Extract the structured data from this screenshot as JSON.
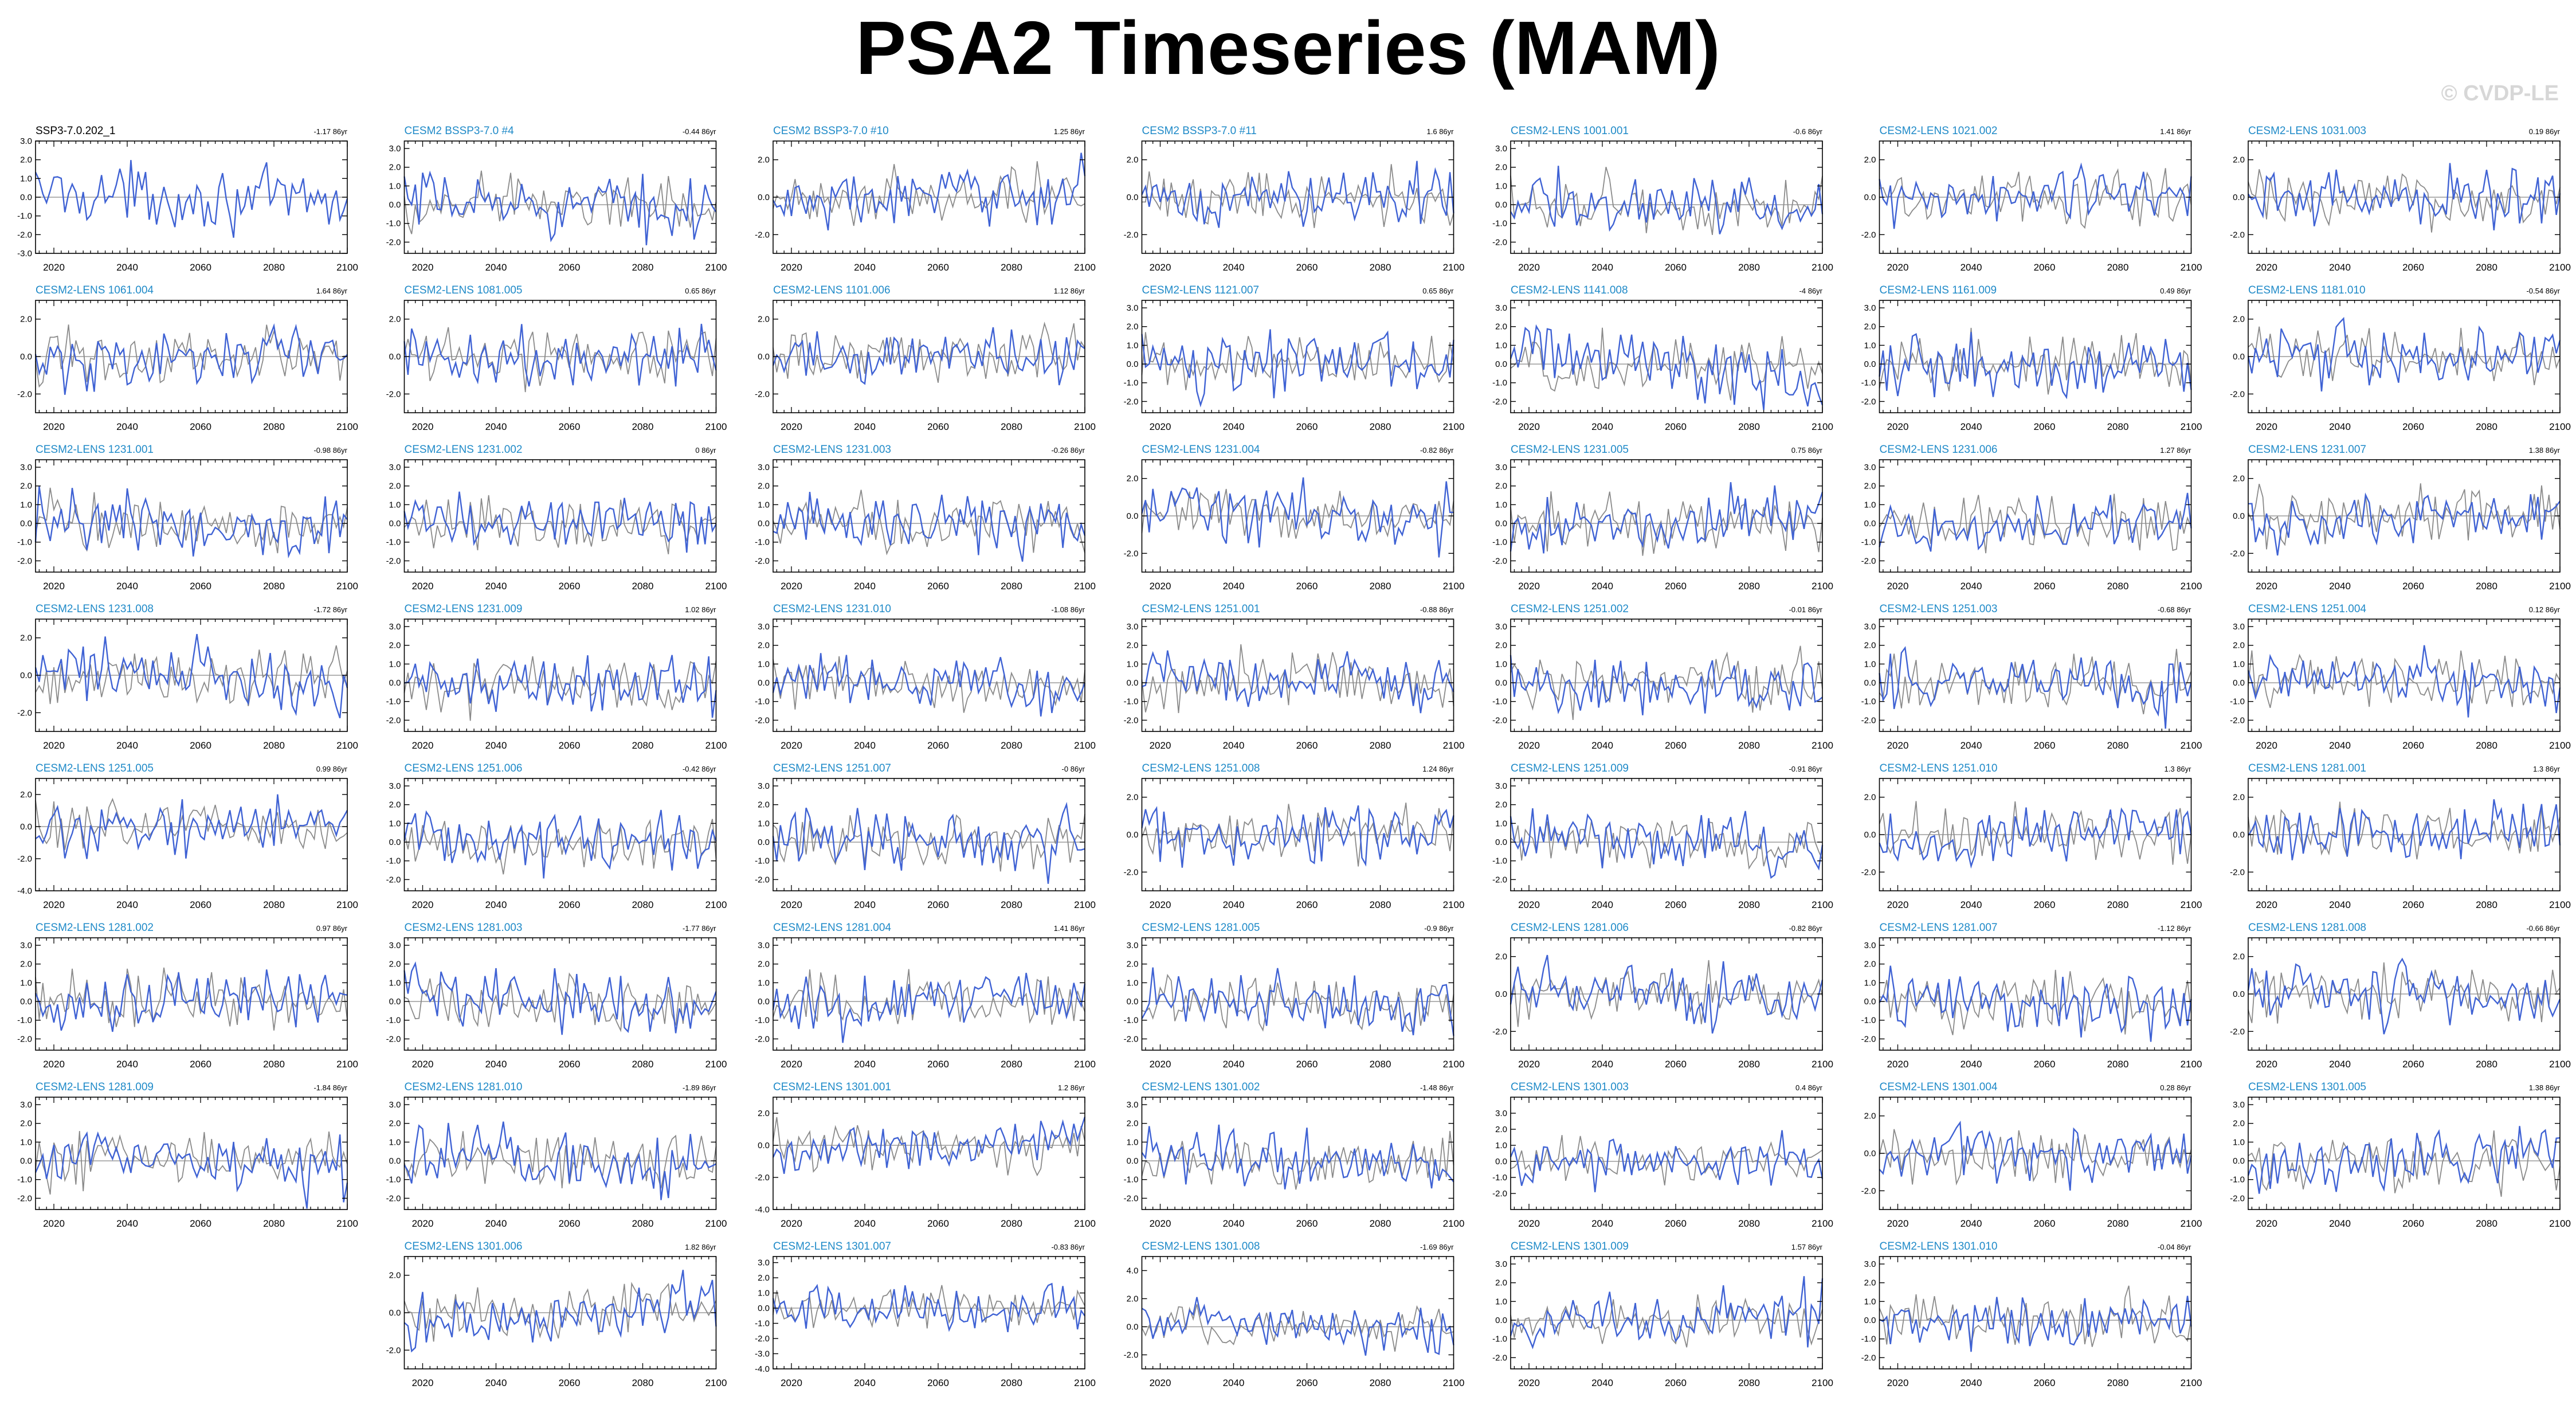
{
  "page": {
    "title": "PSA2 Timeseries (MAM)",
    "credit": "© CVDP-LE"
  },
  "colors": {
    "member_line": "#3f62d4",
    "observation_line": "#8a8a8a",
    "member_title": "#1f8ac8",
    "observation_title": "#000000",
    "zero_line": "#9a9a9a"
  },
  "chart_data": {
    "type": "line",
    "x_range": [
      2015,
      2100
    ],
    "x_ticks": [
      2020,
      2040,
      2060,
      2080,
      2100
    ],
    "y_tick_labels_default": [
      "3.0",
      "2.0",
      "1.0",
      "0.0",
      "-1.0",
      "-2.0"
    ],
    "series_legend": {
      "member": "blue",
      "reference": "gray"
    },
    "panels": [
      {
        "title": "SSP3-7.0.202_1",
        "trend": "-1.17 86yr",
        "title_color": "#000000",
        "has_reference": false,
        "ylim": [
          -3,
          3
        ],
        "yticks": [
          "3.0",
          "2.0",
          "1.0",
          "0.0",
          "-1.0",
          "-2.0",
          "-3.0"
        ],
        "row": 0,
        "col": 0
      },
      {
        "title": "CESM2 BSSP3-7.0 #4",
        "trend": "-0.44 86yr",
        "ylim": [
          -2.6,
          3.4
        ],
        "yticks": [
          "3.0",
          "2.0",
          "1.0",
          "0.0",
          "-1.0",
          "-2.0"
        ],
        "row": 0,
        "col": 1
      },
      {
        "title": "CESM2 BSSP3-7.0 #10",
        "trend": "1.25 86yr",
        "ylim": [
          -3,
          3
        ],
        "yticks": [
          "2.0",
          "0.0",
          "-2.0"
        ],
        "row": 0,
        "col": 2
      },
      {
        "title": "CESM2 BSSP3-7.0 #11",
        "trend": "1.6 86yr",
        "ylim": [
          -3,
          3
        ],
        "yticks": [
          "2.0",
          "0.0",
          "-2.0"
        ],
        "row": 0,
        "col": 3
      },
      {
        "title": "CESM2-LENS 1001.001",
        "trend": "-0.6 86yr",
        "ylim": [
          -2.6,
          3.4
        ],
        "yticks": [
          "3.0",
          "2.0",
          "1.0",
          "0.0",
          "-1.0",
          "-2.0"
        ],
        "row": 0,
        "col": 4
      },
      {
        "title": "CESM2-LENS 1021.002",
        "trend": "1.41 86yr",
        "ylim": [
          -3,
          3
        ],
        "yticks": [
          "2.0",
          "0.0",
          "-2.0"
        ],
        "row": 0,
        "col": 5
      },
      {
        "title": "CESM2-LENS 1031.003",
        "trend": "0.19 86yr",
        "ylim": [
          -3,
          3
        ],
        "yticks": [
          "2.0",
          "0.0",
          "-2.0"
        ],
        "row": 0,
        "col": 6
      },
      {
        "title": "CESM2-LENS 1061.004",
        "trend": "1.64 86yr",
        "ylim": [
          -3,
          3
        ],
        "yticks": [
          "2.0",
          "0.0",
          "-2.0"
        ],
        "row": 1,
        "col": 0
      },
      {
        "title": "CESM2-LENS 1081.005",
        "trend": "0.65 86yr",
        "ylim": [
          -3,
          3
        ],
        "yticks": [
          "2.0",
          "0.0",
          "-2.0"
        ],
        "row": 1,
        "col": 1
      },
      {
        "title": "CESM2-LENS 1101.006",
        "trend": "1.12 86yr",
        "ylim": [
          -3,
          3
        ],
        "yticks": [
          "2.0",
          "0.0",
          "-2.0"
        ],
        "row": 1,
        "col": 2
      },
      {
        "title": "CESM2-LENS 1121.007",
        "trend": "0.65 86yr",
        "ylim": [
          -2.6,
          3.4
        ],
        "yticks": [
          "3.0",
          "2.0",
          "1.0",
          "0.0",
          "-1.0",
          "-2.0"
        ],
        "row": 1,
        "col": 3
      },
      {
        "title": "CESM2-LENS 1141.008",
        "trend": "-4 86yr",
        "ylim": [
          -2.6,
          3.4
        ],
        "yticks": [
          "3.0",
          "2.0",
          "1.0",
          "0.0",
          "-1.0",
          "-2.0"
        ],
        "row": 1,
        "col": 4
      },
      {
        "title": "CESM2-LENS 1161.009",
        "trend": "0.49 86yr",
        "ylim": [
          -2.6,
          3.4
        ],
        "yticks": [
          "3.0",
          "2.0",
          "1.0",
          "0.0",
          "-1.0",
          "-2.0"
        ],
        "row": 1,
        "col": 5
      },
      {
        "title": "CESM2-LENS 1181.010",
        "trend": "-0.54 86yr",
        "ylim": [
          -3,
          3
        ],
        "yticks": [
          "2.0",
          "0.0",
          "-2.0"
        ],
        "row": 1,
        "col": 6
      },
      {
        "title": "CESM2-LENS 1231.001",
        "trend": "-0.98 86yr",
        "ylim": [
          -2.6,
          3.4
        ],
        "yticks": [
          "3.0",
          "2.0",
          "1.0",
          "0.0",
          "-1.0",
          "-2.0"
        ],
        "row": 2,
        "col": 0
      },
      {
        "title": "CESM2-LENS 1231.002",
        "trend": "0 86yr",
        "ylim": [
          -2.6,
          3.4
        ],
        "yticks": [
          "3.0",
          "2.0",
          "1.0",
          "0.0",
          "-1.0",
          "-2.0"
        ],
        "row": 2,
        "col": 1
      },
      {
        "title": "CESM2-LENS 1231.003",
        "trend": "-0.26 86yr",
        "ylim": [
          -2.6,
          3.4
        ],
        "yticks": [
          "3.0",
          "2.0",
          "1.0",
          "0.0",
          "-1.0",
          "-2.0"
        ],
        "row": 2,
        "col": 2
      },
      {
        "title": "CESM2-LENS 1231.004",
        "trend": "-0.82 86yr",
        "ylim": [
          -3,
          3
        ],
        "yticks": [
          "2.0",
          "0.0",
          "-2.0"
        ],
        "row": 2,
        "col": 3
      },
      {
        "title": "CESM2-LENS 1231.005",
        "trend": "0.75 86yr",
        "ylim": [
          -2.6,
          3.4
        ],
        "yticks": [
          "3.0",
          "2.0",
          "1.0",
          "0.0",
          "-1.0",
          "-2.0"
        ],
        "row": 2,
        "col": 4
      },
      {
        "title": "CESM2-LENS 1231.006",
        "trend": "1.27 86yr",
        "ylim": [
          -2.6,
          3.4
        ],
        "yticks": [
          "3.0",
          "2.0",
          "1.0",
          "0.0",
          "-1.0",
          "-2.0"
        ],
        "row": 2,
        "col": 5
      },
      {
        "title": "CESM2-LENS 1231.007",
        "trend": "1.38 86yr",
        "ylim": [
          -3,
          3
        ],
        "yticks": [
          "2.0",
          "0.0",
          "-2.0"
        ],
        "row": 2,
        "col": 6
      },
      {
        "title": "CESM2-LENS 1231.008",
        "trend": "-1.72 86yr",
        "ylim": [
          -3,
          3
        ],
        "yticks": [
          "2.0",
          "0.0",
          "-2.0"
        ],
        "row": 3,
        "col": 0
      },
      {
        "title": "CESM2-LENS 1231.009",
        "trend": "1.02 86yr",
        "ylim": [
          -2.6,
          3.4
        ],
        "yticks": [
          "3.0",
          "2.0",
          "1.0",
          "0.0",
          "-1.0",
          "-2.0"
        ],
        "row": 3,
        "col": 1
      },
      {
        "title": "CESM2-LENS 1231.010",
        "trend": "-1.08 86yr",
        "ylim": [
          -2.6,
          3.4
        ],
        "yticks": [
          "3.0",
          "2.0",
          "1.0",
          "0.0",
          "-1.0",
          "-2.0"
        ],
        "row": 3,
        "col": 2
      },
      {
        "title": "CESM2-LENS 1251.001",
        "trend": "-0.88 86yr",
        "ylim": [
          -2.6,
          3.4
        ],
        "yticks": [
          "3.0",
          "2.0",
          "1.0",
          "0.0",
          "-1.0",
          "-2.0"
        ],
        "row": 3,
        "col": 3
      },
      {
        "title": "CESM2-LENS 1251.002",
        "trend": "-0.01 86yr",
        "ylim": [
          -2.6,
          3.4
        ],
        "yticks": [
          "3.0",
          "2.0",
          "1.0",
          "0.0",
          "-1.0",
          "-2.0"
        ],
        "row": 3,
        "col": 4
      },
      {
        "title": "CESM2-LENS 1251.003",
        "trend": "-0.68 86yr",
        "ylim": [
          -2.6,
          3.4
        ],
        "yticks": [
          "3.0",
          "2.0",
          "1.0",
          "0.0",
          "-1.0",
          "-2.0"
        ],
        "row": 3,
        "col": 5
      },
      {
        "title": "CESM2-LENS 1251.004",
        "trend": "0.12 86yr",
        "ylim": [
          -2.6,
          3.4
        ],
        "yticks": [
          "3.0",
          "2.0",
          "1.0",
          "0.0",
          "-1.0",
          "-2.0"
        ],
        "row": 3,
        "col": 6
      },
      {
        "title": "CESM2-LENS 1251.005",
        "trend": "0.99 86yr",
        "ylim": [
          -4,
          3
        ],
        "yticks": [
          "2.0",
          "0.0",
          "-2.0",
          "-4.0"
        ],
        "row": 4,
        "col": 0
      },
      {
        "title": "CESM2-LENS 1251.006",
        "trend": "-0.42 86yr",
        "ylim": [
          -2.6,
          3.4
        ],
        "yticks": [
          "3.0",
          "2.0",
          "1.0",
          "0.0",
          "-1.0",
          "-2.0"
        ],
        "row": 4,
        "col": 1
      },
      {
        "title": "CESM2-LENS 1251.007",
        "trend": "-0 86yr",
        "ylim": [
          -2.6,
          3.4
        ],
        "yticks": [
          "3.0",
          "2.0",
          "1.0",
          "0.0",
          "-1.0",
          "-2.0"
        ],
        "row": 4,
        "col": 2
      },
      {
        "title": "CESM2-LENS 1251.008",
        "trend": "1.24 86yr",
        "ylim": [
          -3,
          3
        ],
        "yticks": [
          "2.0",
          "0.0",
          "-2.0"
        ],
        "row": 4,
        "col": 3
      },
      {
        "title": "CESM2-LENS 1251.009",
        "trend": "-0.91 86yr",
        "ylim": [
          -2.6,
          3.4
        ],
        "yticks": [
          "3.0",
          "2.0",
          "1.0",
          "0.0",
          "-1.0",
          "-2.0"
        ],
        "row": 4,
        "col": 4
      },
      {
        "title": "CESM2-LENS 1251.010",
        "trend": "1.3 86yr",
        "ylim": [
          -3,
          3
        ],
        "yticks": [
          "2.0",
          "0.0",
          "-2.0"
        ],
        "row": 4,
        "col": 5
      },
      {
        "title": "CESM2-LENS 1281.001",
        "trend": "1.3 86yr",
        "ylim": [
          -3,
          3
        ],
        "yticks": [
          "2.0",
          "0.0",
          "-2.0"
        ],
        "row": 4,
        "col": 6
      },
      {
        "title": "CESM2-LENS 1281.002",
        "trend": "0.97 86yr",
        "ylim": [
          -2.6,
          3.4
        ],
        "yticks": [
          "3.0",
          "2.0",
          "1.0",
          "0.0",
          "-1.0",
          "-2.0"
        ],
        "row": 5,
        "col": 0
      },
      {
        "title": "CESM2-LENS 1281.003",
        "trend": "-1.77 86yr",
        "ylim": [
          -2.6,
          3.4
        ],
        "yticks": [
          "3.0",
          "2.0",
          "1.0",
          "0.0",
          "-1.0",
          "-2.0"
        ],
        "row": 5,
        "col": 1
      },
      {
        "title": "CESM2-LENS 1281.004",
        "trend": "1.41 86yr",
        "ylim": [
          -2.6,
          3.4
        ],
        "yticks": [
          "3.0",
          "2.0",
          "1.0",
          "0.0",
          "-1.0",
          "-2.0"
        ],
        "row": 5,
        "col": 2
      },
      {
        "title": "CESM2-LENS 1281.005",
        "trend": "-0.9 86yr",
        "ylim": [
          -2.6,
          3.4
        ],
        "yticks": [
          "3.0",
          "2.0",
          "1.0",
          "0.0",
          "-1.0",
          "-2.0"
        ],
        "row": 5,
        "col": 3
      },
      {
        "title": "CESM2-LENS 1281.006",
        "trend": "-0.82 86yr",
        "ylim": [
          -3,
          3
        ],
        "yticks": [
          "2.0",
          "0.0",
          "-2.0"
        ],
        "row": 5,
        "col": 4
      },
      {
        "title": "CESM2-LENS 1281.007",
        "trend": "-1.12 86yr",
        "ylim": [
          -2.6,
          3.4
        ],
        "yticks": [
          "3.0",
          "2.0",
          "1.0",
          "0.0",
          "-1.0",
          "-2.0"
        ],
        "row": 5,
        "col": 5
      },
      {
        "title": "CESM2-LENS 1281.008",
        "trend": "-0.66 86yr",
        "ylim": [
          -3,
          3
        ],
        "yticks": [
          "2.0",
          "0.0",
          "-2.0"
        ],
        "row": 5,
        "col": 6
      },
      {
        "title": "CESM2-LENS 1281.009",
        "trend": "-1.84 86yr",
        "ylim": [
          -2.6,
          3.4
        ],
        "yticks": [
          "3.0",
          "2.0",
          "1.0",
          "0.0",
          "-1.0",
          "-2.0"
        ],
        "row": 6,
        "col": 0
      },
      {
        "title": "CESM2-LENS 1281.010",
        "trend": "-1.89 86yr",
        "ylim": [
          -2.6,
          3.4
        ],
        "yticks": [
          "3.0",
          "2.0",
          "1.0",
          "0.0",
          "-1.0",
          "-2.0"
        ],
        "row": 6,
        "col": 1
      },
      {
        "title": "CESM2-LENS 1301.001",
        "trend": "1.2 86yr",
        "ylim": [
          -4,
          3
        ],
        "yticks": [
          "2.0",
          "0.0",
          "-2.0",
          "-4.0"
        ],
        "row": 6,
        "col": 2
      },
      {
        "title": "CESM2-LENS 1301.002",
        "trend": "-1.48 86yr",
        "ylim": [
          -2.6,
          3.4
        ],
        "yticks": [
          "3.0",
          "2.0",
          "1.0",
          "0.0",
          "-1.0",
          "-2.0"
        ],
        "row": 6,
        "col": 3
      },
      {
        "title": "CESM2-LENS 1301.003",
        "trend": "0.4 86yr",
        "ylim": [
          -3,
          4
        ],
        "yticks": [
          "3.0",
          "2.0",
          "1.0",
          "0.0",
          "-1.0",
          "-2.0"
        ],
        "row": 6,
        "col": 4
      },
      {
        "title": "CESM2-LENS 1301.004",
        "trend": "0.28 86yr",
        "ylim": [
          -3,
          3
        ],
        "yticks": [
          "2.0",
          "0.0",
          "-2.0"
        ],
        "row": 6,
        "col": 5
      },
      {
        "title": "CESM2-LENS 1301.005",
        "trend": "1.38 86yr",
        "ylim": [
          -2.6,
          3.4
        ],
        "yticks": [
          "3.0",
          "2.0",
          "1.0",
          "0.0",
          "-1.0",
          "-2.0"
        ],
        "row": 6,
        "col": 6
      },
      {
        "title": "CESM2-LENS 1301.006",
        "trend": "1.82 86yr",
        "ylim": [
          -3,
          3
        ],
        "yticks": [
          "2.0",
          "0.0",
          "-2.0"
        ],
        "row": 7,
        "col": 1
      },
      {
        "title": "CESM2-LENS 1301.007",
        "trend": "-0.83 86yr",
        "ylim": [
          -4,
          3.4
        ],
        "yticks": [
          "3.0",
          "2.0",
          "1.0",
          "0.0",
          "-1.0",
          "-2.0",
          "-3.0",
          "-4.0"
        ],
        "row": 7,
        "col": 2
      },
      {
        "title": "CESM2-LENS 1301.008",
        "trend": "-1.69 86yr",
        "ylim": [
          -3,
          5
        ],
        "yticks": [
          "4.0",
          "2.0",
          "0.0",
          "-2.0"
        ],
        "row": 7,
        "col": 3
      },
      {
        "title": "CESM2-LENS 1301.009",
        "trend": "1.57 86yr",
        "ylim": [
          -2.6,
          3.4
        ],
        "yticks": [
          "3.0",
          "2.0",
          "1.0",
          "0.0",
          "-1.0",
          "-2.0"
        ],
        "row": 7,
        "col": 4
      },
      {
        "title": "CESM2-LENS 1301.010",
        "trend": "-0.04 86yr",
        "ylim": [
          -2.6,
          3.4
        ],
        "yticks": [
          "3.0",
          "2.0",
          "1.0",
          "0.0",
          "-1.0",
          "-2.0"
        ],
        "row": 7,
        "col": 5
      }
    ]
  }
}
